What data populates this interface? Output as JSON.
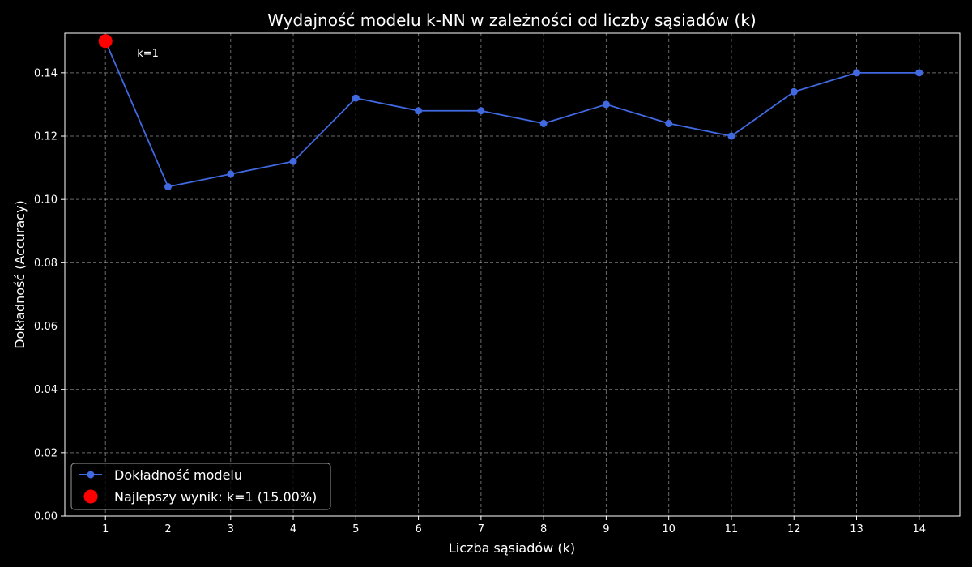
{
  "chart_data": {
    "type": "line",
    "title": "Wydajność modelu k-NN w zależności od liczby sąsiadów (k)",
    "xlabel": "Liczba sąsiadów (k)",
    "ylabel": "Dokładność (Accuracy)",
    "x": [
      1,
      2,
      3,
      4,
      5,
      6,
      7,
      8,
      9,
      10,
      11,
      12,
      13,
      14
    ],
    "xlim": [
      0.35,
      14.65
    ],
    "ylim": [
      0,
      0.1525
    ],
    "yticks": [
      "0.00",
      "0.02",
      "0.04",
      "0.06",
      "0.08",
      "0.10",
      "0.12",
      "0.14"
    ],
    "grid": true,
    "legend_position": "lower-left",
    "series": [
      {
        "name": "Dokładność modelu",
        "color": "#4169e1",
        "values": [
          0.15,
          0.104,
          0.108,
          0.112,
          0.132,
          0.128,
          0.128,
          0.124,
          0.13,
          0.124,
          0.12,
          0.134,
          0.14,
          0.14
        ]
      }
    ],
    "best": {
      "label": "Najlepszy wynik: k=1 (15.00%)",
      "k": 1,
      "value": 0.15,
      "color": "#ff0000",
      "annotation": "k=1"
    }
  }
}
